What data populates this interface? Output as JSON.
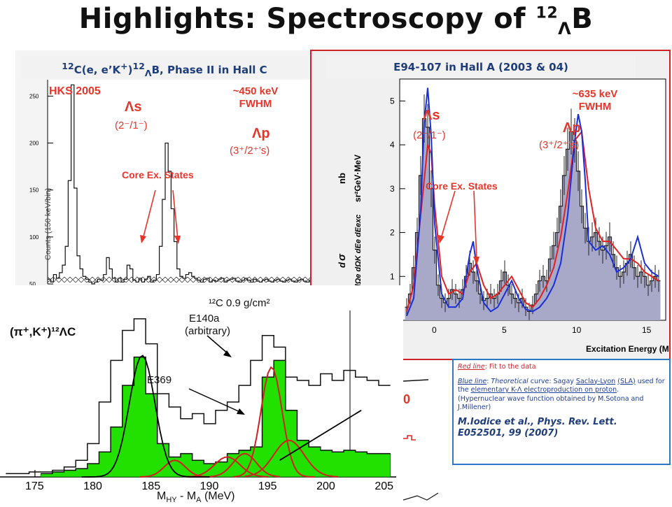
{
  "slide": {
    "title_prefix": "Highlights:  Spectroscopy of ",
    "title_mass": "12",
    "title_lambda": "Λ",
    "title_element": "B"
  },
  "hallc_panel": {
    "header_sup": "12",
    "header_a": "C(e, e’K",
    "header_plus": "+",
    "header_b": ")",
    "header_sup2": "12",
    "header_lambda": "Λ",
    "header_c": "B,  Phase II in Hall C",
    "hks_label": "HKS 2005",
    "resolution_line1": "~450 keV",
    "resolution_line2": "FWHM",
    "lambda_s_label": "Λs",
    "lambda_s_jp": "(2⁻/1⁻)",
    "lambda_p_label": "Λp",
    "lambda_p_jp": "(3⁺/2⁺’s)",
    "core_label": "Core Ex. States",
    "yaxis_label": "Counts (150 keV/bin)"
  },
  "halla_panel": {
    "header": "E94-107 in Hall A (2003 & 04)",
    "resolution_line1": "~635 keV",
    "resolution_line2": "FWHM",
    "lambda_s_label": "Λs",
    "lambda_s_jp": "(2⁻/1⁻)",
    "lambda_p_label": "Λp",
    "lambda_p_jp": "(3⁺/2⁺’s)",
    "core_label": "Core Ex. States",
    "xlabel": "Excitation Energy (MeV)",
    "yunit_line1": "nb",
    "yunit_line2": "sr²GeV·MeV"
  },
  "kpi_panel": {
    "label": "(π⁺,K⁺)¹²ΛC",
    "target_label": "¹²C 0.9 g/cm²",
    "e140a_line1": "E140a",
    "e140a_line2": "(arbitrary)",
    "e369_label": "E369",
    "xlabel": "M",
    "xlabel_sub1": "HY",
    "xlabel_mid": " - M",
    "xlabel_sub2": "A",
    "xlabel_unit": " (MeV)"
  },
  "reference": {
    "red_line_key": "Red line",
    "red_line_text": ": Fit to the data",
    "blue_line_key": "Blue line",
    "blue_line_text1": ": ",
    "blue_line_theoretical": "Theoretical",
    "blue_line_text2": " curve: Sagay ",
    "blue_line_link1": "Saclay-Lyon",
    "blue_line_link2": "(SLA)",
    "blue_line_text3": " used for the ",
    "blue_line_link3": "elementary K-Λ electroproduction on proton",
    "blue_line_text4": ". (Hypernuclear wave function obtained by M.Sotona and J.Millener)",
    "citation_line1": "M.Iodice et al., Phys. Rev. Lett.",
    "citation_line2": "E052501, 99 (2007)"
  },
  "colors": {
    "accent_red": "#e8352a",
    "fit_red": "#e32020",
    "theory_blue": "#1a2fd8",
    "header_blue": "#1f3d7a",
    "frame_red": "#d0202a",
    "ref_border": "#2b78c4",
    "peak_green": "#22e000"
  },
  "chart_data": [
    {
      "type": "line",
      "id": "hallc",
      "x": [
        0,
        1,
        2,
        3,
        4,
        5,
        6,
        7,
        8,
        9,
        10,
        11,
        12,
        13,
        14,
        15,
        16,
        17,
        18,
        19,
        20,
        21,
        22,
        23,
        24,
        25,
        26,
        27,
        28,
        29,
        30,
        31,
        32,
        33,
        34,
        35,
        36,
        37,
        38,
        39,
        40,
        41,
        42,
        43,
        44,
        45,
        46,
        47,
        48,
        49,
        50,
        51,
        52,
        53,
        54,
        55,
        56,
        57,
        58,
        59,
        60,
        61,
        62,
        63,
        64,
        65,
        66,
        67,
        68,
        69,
        70,
        71,
        72,
        73,
        74,
        75,
        76,
        77,
        78,
        79,
        80,
        81,
        82,
        83,
        84,
        85,
        86,
        87,
        88,
        89
      ],
      "values": [
        55,
        52,
        60,
        56,
        62,
        70,
        90,
        160,
        262,
        152,
        80,
        66,
        58,
        55,
        52,
        50,
        52,
        55,
        54,
        60,
        78,
        66,
        56,
        52,
        56,
        52,
        55,
        70,
        66,
        54,
        52,
        56,
        52,
        55,
        58,
        52,
        54,
        60,
        90,
        140,
        200,
        170,
        130,
        95,
        66,
        58,
        56,
        60,
        62,
        58,
        56,
        54,
        52,
        55,
        56,
        52,
        54,
        53,
        55,
        56,
        52,
        54,
        55,
        56,
        53,
        52,
        54,
        56,
        54,
        52,
        55,
        53,
        52,
        54,
        55,
        53,
        52,
        54,
        55,
        53,
        52,
        54,
        55,
        53,
        52,
        54,
        55,
        53,
        52,
        54
      ],
      "ylim": [
        50,
        260
      ],
      "yticks": [
        50,
        100,
        150,
        200,
        250
      ],
      "ylabel": "Counts (150 keV/bin)"
    },
    {
      "type": "line",
      "id": "halla",
      "xlabel": "Excitation Energy (MeV)",
      "xlim": [
        -2.5,
        16.5
      ],
      "ylim": [
        0,
        5.5
      ],
      "xticks": [
        0,
        5,
        10,
        15
      ],
      "yticks": [
        1,
        2,
        3,
        4,
        5
      ],
      "data_x": [
        -2.0,
        -1.75,
        -1.5,
        -1.25,
        -1.0,
        -0.75,
        -0.5,
        -0.25,
        0.0,
        0.25,
        0.5,
        0.75,
        1.0,
        1.25,
        1.5,
        1.75,
        2.0,
        2.25,
        2.5,
        2.75,
        3.0,
        3.25,
        3.5,
        3.75,
        4.0,
        4.25,
        4.5,
        4.75,
        5.0,
        5.25,
        5.5,
        5.75,
        6.0,
        6.25,
        6.5,
        6.75,
        7.0,
        7.25,
        7.5,
        7.75,
        8.0,
        8.25,
        8.5,
        8.75,
        9.0,
        9.25,
        9.5,
        9.75,
        10.0,
        10.25,
        10.5,
        10.75,
        11.0,
        11.25,
        11.5,
        11.75,
        12.0,
        12.25,
        12.5,
        12.75,
        13.0,
        13.25,
        13.5,
        13.75,
        14.0,
        14.25,
        14.5,
        14.75,
        15.0,
        15.25,
        15.5,
        15.75,
        16.0
      ],
      "data_y": [
        0.3,
        0.6,
        1.2,
        2.0,
        3.3,
        4.6,
        4.4,
        3.0,
        1.6,
        0.8,
        0.5,
        0.4,
        0.5,
        0.7,
        0.6,
        0.5,
        0.7,
        1.0,
        1.3,
        1.1,
        0.9,
        0.6,
        0.45,
        0.5,
        0.6,
        0.5,
        0.6,
        0.9,
        1.1,
        0.8,
        0.6,
        0.5,
        0.4,
        0.5,
        0.3,
        0.2,
        0.35,
        0.6,
        0.9,
        1.0,
        0.9,
        1.4,
        1.7,
        2.0,
        2.6,
        3.3,
        3.9,
        4.3,
        4.1,
        3.4,
        2.6,
        2.1,
        1.8,
        1.9,
        2.0,
        1.8,
        1.6,
        1.7,
        1.9,
        1.5,
        1.2,
        1.0,
        1.1,
        1.3,
        1.5,
        1.2,
        1.0,
        1.1,
        1.0,
        0.8,
        0.9,
        1.0,
        0.9
      ],
      "series": [
        {
          "name": "Red line",
          "x": [
            -2.0,
            -1.5,
            -1.0,
            -0.5,
            -0.25,
            0.0,
            0.5,
            1.0,
            1.5,
            2.0,
            2.5,
            3.0,
            3.5,
            4.0,
            4.5,
            5.0,
            5.5,
            6.0,
            6.5,
            7.0,
            7.5,
            8.0,
            8.5,
            9.0,
            9.5,
            10.0,
            10.5,
            11.0,
            11.5,
            12.0,
            12.5,
            13.0,
            13.5,
            14.0,
            14.5,
            15.0,
            15.5,
            16.0
          ],
          "y": [
            0.2,
            0.8,
            2.4,
            4.0,
            3.8,
            2.6,
            1.0,
            0.6,
            0.7,
            0.6,
            1.1,
            1.3,
            0.8,
            0.5,
            0.6,
            0.8,
            1.0,
            0.7,
            0.4,
            0.3,
            0.5,
            0.8,
            1.2,
            1.9,
            2.9,
            4.1,
            4.3,
            3.0,
            2.1,
            1.8,
            1.8,
            1.6,
            1.4,
            1.4,
            1.3,
            1.1,
            1.0,
            0.9
          ]
        },
        {
          "name": "Blue line",
          "x": [
            -2.0,
            -1.5,
            -1.0,
            -0.75,
            -0.5,
            -0.25,
            0.0,
            0.5,
            1.0,
            1.5,
            2.0,
            2.5,
            2.75,
            3.0,
            3.5,
            4.0,
            4.5,
            5.0,
            5.5,
            6.0,
            6.5,
            7.0,
            7.5,
            8.0,
            8.5,
            9.0,
            9.5,
            10.0,
            10.25,
            10.5,
            10.75,
            11.0,
            11.5,
            12.0,
            12.5,
            13.0,
            13.5,
            14.0,
            14.5,
            15.0,
            15.5,
            16.0
          ],
          "y": [
            0.1,
            0.5,
            2.5,
            4.5,
            5.3,
            4.2,
            2.2,
            0.6,
            0.3,
            0.3,
            0.5,
            1.5,
            1.8,
            1.2,
            0.4,
            0.2,
            0.3,
            0.6,
            0.9,
            0.5,
            0.25,
            0.2,
            0.3,
            0.5,
            0.8,
            1.3,
            2.4,
            4.1,
            4.7,
            4.3,
            3.2,
            1.8,
            1.6,
            1.7,
            1.5,
            1.1,
            1.2,
            1.4,
            1.9,
            1.3,
            1.1,
            1.0
          ]
        }
      ]
    },
    {
      "type": "line",
      "id": "kpi",
      "xlabel": "MHY - MA (MeV)",
      "xlim": [
        172,
        206
      ],
      "ylim": [
        0,
        100
      ],
      "xticks": [
        175,
        180,
        185,
        190,
        195,
        200,
        205
      ],
      "series": [
        {
          "name": "E140a",
          "x": [
            173,
            174,
            175,
            176,
            177,
            178,
            179,
            180,
            181,
            182,
            183,
            184,
            185,
            186,
            187,
            188,
            189,
            190,
            191,
            192,
            193,
            194,
            195,
            196,
            197,
            198,
            199,
            200,
            201,
            202,
            203,
            204,
            205
          ],
          "y": [
            2,
            2,
            3,
            3,
            4,
            6,
            10,
            20,
            45,
            70,
            88,
            95,
            80,
            50,
            42,
            35,
            38,
            32,
            40,
            45,
            55,
            70,
            85,
            78,
            60,
            58,
            55,
            62,
            58,
            64,
            60,
            58,
            55
          ]
        },
        {
          "name": "E369",
          "x": [
            176,
            177,
            178,
            179,
            180,
            181,
            182,
            183,
            184,
            185,
            186,
            187,
            188,
            189,
            190,
            191,
            192,
            193,
            194,
            195,
            196,
            197,
            198,
            199,
            200,
            201,
            202,
            203,
            204,
            205
          ],
          "y": [
            2,
            3,
            4,
            5,
            8,
            15,
            30,
            55,
            72,
            50,
            20,
            12,
            14,
            10,
            8,
            9,
            14,
            16,
            18,
            60,
            70,
            40,
            22,
            18,
            16,
            15,
            16,
            15,
            14,
            14
          ]
        }
      ]
    }
  ]
}
